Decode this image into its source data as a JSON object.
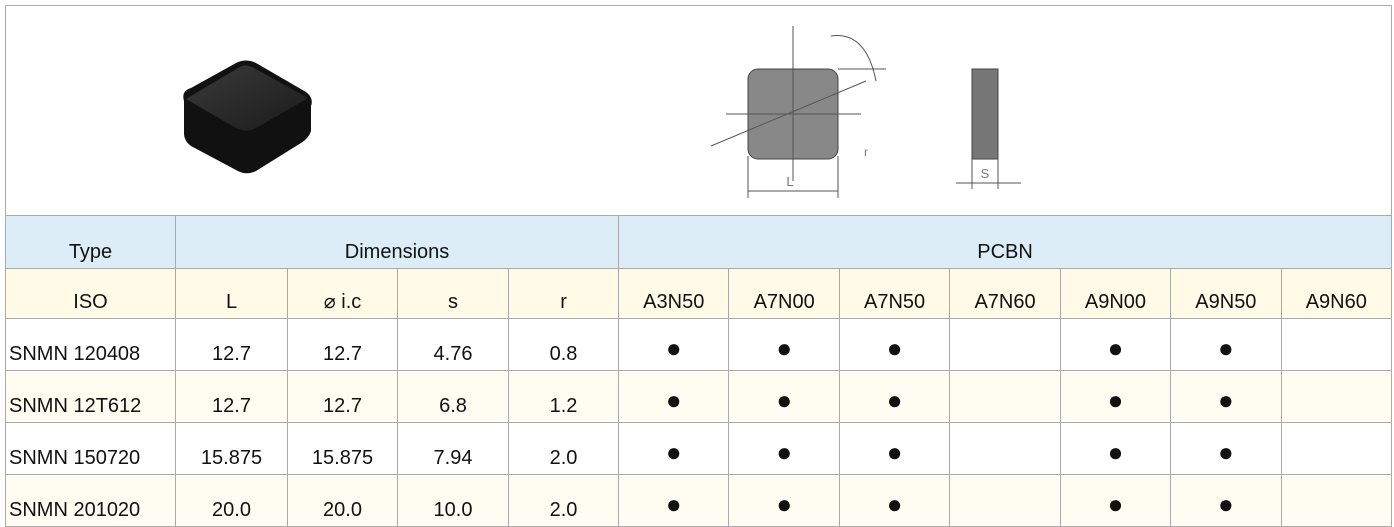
{
  "drawing": {
    "labels": [
      "L",
      "S",
      "r"
    ]
  },
  "table": {
    "group_header": [
      "Type",
      "Dimensions",
      "PCBN"
    ],
    "columns": [
      "ISO",
      "L",
      "⌀ i.c",
      "s",
      "r",
      "A3N50",
      "A7N00",
      "A7N50",
      "A7N60",
      "A9N00",
      "A9N50",
      "A9N60"
    ],
    "rows": [
      [
        "SNMN 120408",
        "12.7",
        "12.7",
        "4.76",
        "0.8",
        "●",
        "●",
        "●",
        null,
        "●",
        "●",
        null
      ],
      [
        "SNMN 12T612",
        "12.7",
        "12.7",
        "6.8",
        "1.2",
        "●",
        "●",
        "●",
        null,
        "●",
        "●",
        null
      ],
      [
        "SNMN 150720",
        "15.875",
        "15.875",
        "7.94",
        "2.0",
        "●",
        "●",
        "●",
        null,
        "●",
        "●",
        null
      ],
      [
        "SNMN 201020",
        "20.0",
        "20.0",
        "10.0",
        "2.0",
        "●",
        "●",
        "●",
        null,
        "●",
        "●",
        null
      ]
    ]
  }
}
